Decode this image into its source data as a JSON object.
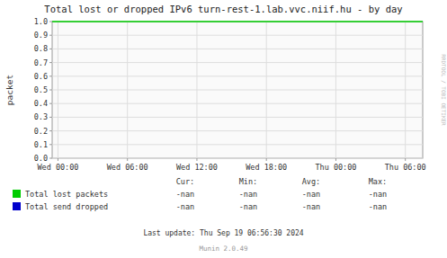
{
  "chart_data": {
    "type": "line",
    "title": "Total lost or dropped IPv6 turn-rest-1.lab.vvc.niif.hu - by day",
    "y_label": "packet",
    "xlim": [
      -0.5,
      31.5
    ],
    "xticks": [
      {
        "value": 0,
        "label": "Wed 00:00"
      },
      {
        "value": 6,
        "label": "Wed 06:00"
      },
      {
        "value": 12,
        "label": "Wed 12:00"
      },
      {
        "value": 18,
        "label": "Wed 18:00"
      },
      {
        "value": 24,
        "label": "Thu 00:00"
      },
      {
        "value": 30,
        "label": "Thu 06:00"
      }
    ],
    "ylim": [
      0.0,
      1.0
    ],
    "yticks": [
      {
        "value": 0.0,
        "label": "0.0"
      },
      0.1,
      0.2,
      0.3,
      0.4,
      0.5,
      0.6,
      0.7,
      0.8,
      0.9,
      {
        "value": 1.0,
        "label": "1.0"
      }
    ],
    "grid": true,
    "hline": {
      "value": 1.0,
      "color": "#00cc00"
    },
    "stats_headers": [
      "Cur:",
      "Min:",
      "Avg:",
      "Max:"
    ],
    "series": [
      {
        "name": "Total lost packets",
        "color": "#00cc00",
        "stats": [
          "-nan",
          "-nan",
          "-nan",
          "-nan"
        ]
      },
      {
        "name": "Total send dropped",
        "color": "#0000cc",
        "stats": [
          "-nan",
          "-nan",
          "-nan",
          "-nan"
        ]
      }
    ],
    "footer": "Last update: Thu Sep 19 06:56:30 2024",
    "version": "Munin 2.0.49",
    "side_text": "RRDTOOL / TOBI OETIKER"
  }
}
